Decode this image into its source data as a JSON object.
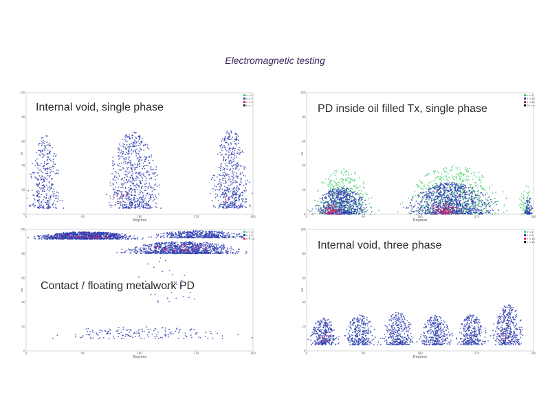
{
  "page": {
    "title": "Electromagnetic testing"
  },
  "colors": {
    "blue": "#2e3fb0",
    "green": "#44d16a",
    "red": "#e0206a",
    "dark": "#301030"
  },
  "chart_data": [
    {
      "type": "scatter",
      "title": "Internal void, single phase",
      "xlabel": "Degrees",
      "ylabel": "dB",
      "xlim": [
        0,
        360
      ],
      "ylim": [
        0,
        100
      ],
      "xticks": [
        "0",
        "90",
        "180",
        "270",
        "360"
      ],
      "yticks": [
        "0",
        "20",
        "40",
        "60",
        "80",
        "100"
      ],
      "legend": {
        "position": "top-right",
        "entries": [
          "n < 2",
          "n < 5",
          "n < 3",
          "n < 1"
        ]
      },
      "series": [
        {
          "color": "blue",
          "clusters": [
            {
              "x": [
                0,
                60
              ],
              "y": [
                5,
                65
              ],
              "n": 320
            },
            {
              "x": [
                120,
                220
              ],
              "y": [
                5,
                68
              ],
              "n": 650
            },
            {
              "x": [
                290,
                360
              ],
              "y": [
                5,
                70
              ],
              "n": 500
            }
          ]
        },
        {
          "color": "red",
          "clusters": [
            {
              "x": [
                130,
                170
              ],
              "y": [
                10,
                25
              ],
              "n": 12
            },
            {
              "x": [
                300,
                330
              ],
              "y": [
                10,
                30
              ],
              "n": 6
            }
          ]
        }
      ]
    },
    {
      "type": "scatter",
      "title": "PD inside oil filled Tx, single phase",
      "xlabel": "Degrees",
      "ylabel": "dB",
      "xlim": [
        0,
        360
      ],
      "ylim": [
        0,
        100
      ],
      "xticks": [
        "0",
        "90",
        "180",
        "270",
        "360"
      ],
      "yticks": [
        "0",
        "20",
        "40",
        "60",
        "80",
        "100"
      ],
      "legend": {
        "position": "top-right",
        "entries": [
          "n < 5",
          "n < 10",
          "n < 20",
          "20 < n"
        ]
      },
      "series": [
        {
          "color": "green",
          "clusters": [
            {
              "x": [
                0,
                115
              ],
              "y": [
                0,
                38
              ],
              "n": 400
            },
            {
              "x": [
                140,
                330
              ],
              "y": [
                0,
                40
              ],
              "n": 600
            },
            {
              "x": [
                335,
                360
              ],
              "y": [
                0,
                25
              ],
              "n": 60
            }
          ]
        },
        {
          "color": "blue",
          "clusters": [
            {
              "x": [
                5,
                105
              ],
              "y": [
                0,
                22
              ],
              "n": 700
            },
            {
              "x": [
                150,
                310
              ],
              "y": [
                0,
                26
              ],
              "n": 1000
            },
            {
              "x": [
                345,
                360
              ],
              "y": [
                0,
                15
              ],
              "n": 80
            }
          ]
        },
        {
          "color": "red",
          "clusters": [
            {
              "x": [
                20,
                60
              ],
              "y": [
                0,
                8
              ],
              "n": 60
            },
            {
              "x": [
                190,
                250
              ],
              "y": [
                0,
                9
              ],
              "n": 90
            }
          ]
        }
      ]
    },
    {
      "type": "scatter",
      "title": "Contact / floating metalwork PD",
      "xlabel": "Degrees",
      "ylabel": "dB",
      "xlim": [
        0,
        360
      ],
      "ylim": [
        0,
        100
      ],
      "xticks": [
        "0",
        "90",
        "180",
        "270",
        "360"
      ],
      "yticks": [
        "0",
        "20",
        "40",
        "60",
        "80",
        "100"
      ],
      "legend": {
        "position": "top-right",
        "entries": [
          "n < 2",
          "n < 5",
          "n < 10"
        ]
      },
      "series": [
        {
          "color": "blue",
          "clusters": [
            {
              "x": [
                0,
                190
              ],
              "y": [
                92,
                98
              ],
              "n": 1100
            },
            {
              "x": [
                190,
                360
              ],
              "y": [
                93,
                99
              ],
              "n": 500
            },
            {
              "x": [
                140,
                360
              ],
              "y": [
                80,
                90
              ],
              "n": 1000
            },
            {
              "x": [
                0,
                360
              ],
              "y": [
                10,
                20
              ],
              "n": 160
            },
            {
              "x": [
                150,
                300
              ],
              "y": [
                40,
                78
              ],
              "n": 30
            }
          ]
        },
        {
          "color": "red",
          "clusters": [
            {
              "x": [
                20,
                170
              ],
              "y": [
                93,
                97
              ],
              "n": 50
            },
            {
              "x": [
                180,
                330
              ],
              "y": [
                82,
                88
              ],
              "n": 40
            }
          ]
        }
      ]
    },
    {
      "type": "scatter",
      "title": "Internal void, three phase",
      "xlabel": "Degrees",
      "ylabel": "dB",
      "xlim": [
        0,
        360
      ],
      "ylim": [
        0,
        100
      ],
      "xticks": [
        "0",
        "90",
        "180",
        "270",
        "360"
      ],
      "yticks": [
        "0",
        "20",
        "40",
        "60",
        "80",
        "100"
      ],
      "legend": {
        "position": "top-right",
        "entries": [
          "n < 2",
          "n < 5",
          "n < 10",
          "n < 15"
        ]
      },
      "series": [
        {
          "color": "blue",
          "clusters": [
            {
              "x": [
                0,
                55
              ],
              "y": [
                5,
                27
              ],
              "n": 320
            },
            {
              "x": [
                55,
                115
              ],
              "y": [
                5,
                30
              ],
              "n": 300
            },
            {
              "x": [
                115,
                175
              ],
              "y": [
                5,
                32
              ],
              "n": 320
            },
            {
              "x": [
                175,
                235
              ],
              "y": [
                5,
                29
              ],
              "n": 320
            },
            {
              "x": [
                235,
                290
              ],
              "y": [
                5,
                30
              ],
              "n": 300
            },
            {
              "x": [
                290,
                350
              ],
              "y": [
                5,
                38
              ],
              "n": 380
            }
          ]
        },
        {
          "color": "red",
          "clusters": [
            {
              "x": [
                20,
                40
              ],
              "y": [
                8,
                15
              ],
              "n": 8
            },
            {
              "x": [
                300,
                330
              ],
              "y": [
                8,
                18
              ],
              "n": 10
            }
          ]
        }
      ]
    }
  ]
}
